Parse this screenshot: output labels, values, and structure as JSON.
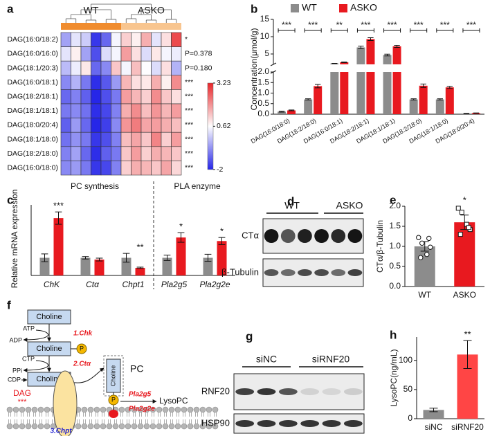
{
  "chart_data": [
    {
      "type": "heatmap",
      "panel": "a",
      "groups": [
        {
          "name": "WT",
          "color": "#f08c2e"
        },
        {
          "name": "ASKO",
          "color": "#f8c58f"
        }
      ],
      "rows": [
        "DAG(16:0/18:2)",
        "DAG(16:0/16:0)",
        "DAG(18:1/20:3)",
        "DAG(16:0/18:1)",
        "DAG(18:2/18:1)",
        "DAG(18:1/18:1)",
        "DAG(18:0/20:4)",
        "DAG(18:1/18:0)",
        "DAG(18:2/18:0)",
        "DAG(16:0/18:0)"
      ],
      "row_annotations": [
        "*",
        "P=0.378",
        "P=0.180",
        "***",
        "***",
        "***",
        "***",
        "***",
        "***",
        "***"
      ],
      "values": [
        [
          -0.5,
          0.3,
          0.0,
          -1.8,
          -1.2,
          0.5,
          1.2,
          0.8,
          1.6,
          0.3,
          1.0,
          2.8
        ],
        [
          0.3,
          0.8,
          -0.5,
          -1.5,
          0.2,
          0.5,
          1.8,
          1.0,
          0.2,
          0.9,
          0.5,
          0.4
        ],
        [
          -0.2,
          0.4,
          0.9,
          -1.2,
          -0.8,
          1.3,
          0.5,
          1.4,
          0.6,
          0.2,
          1.0,
          -0.3
        ],
        [
          -0.8,
          -0.3,
          -1.0,
          -1.9,
          -1.4,
          -0.6,
          1.5,
          1.0,
          0.9,
          1.6,
          0.8,
          2.0
        ],
        [
          -1.2,
          -0.9,
          -1.3,
          -2.0,
          -1.5,
          -1.0,
          1.8,
          1.5,
          1.2,
          2.0,
          1.3,
          1.0
        ],
        [
          -1.0,
          -0.8,
          -1.1,
          -1.9,
          -1.6,
          -0.9,
          1.6,
          2.0,
          1.4,
          1.9,
          1.5,
          1.8
        ],
        [
          -1.3,
          -0.6,
          -1.2,
          -2.0,
          -1.7,
          -0.8,
          1.9,
          2.2,
          1.7,
          1.8,
          1.6,
          1.4
        ],
        [
          -1.1,
          -0.7,
          -1.0,
          -1.8,
          -1.5,
          -0.9,
          1.4,
          1.7,
          1.3,
          2.1,
          1.2,
          1.8
        ],
        [
          -0.9,
          -0.5,
          -1.2,
          -1.9,
          -1.3,
          -1.0,
          1.3,
          1.8,
          1.2,
          1.6,
          1.5,
          1.3
        ],
        [
          -0.8,
          -0.6,
          -1.0,
          -1.8,
          -1.6,
          -0.9,
          1.2,
          1.6,
          1.5,
          1.3,
          1.7,
          1.1
        ]
      ],
      "zlim": [
        -2,
        3.23
      ],
      "zticks": [
        -2,
        0.62,
        3.23
      ],
      "colors": [
        "#2626e8",
        "#ffffff",
        "#e8262a"
      ]
    },
    {
      "type": "bar",
      "panel": "b",
      "y_label": "Concentration(μmol/g)",
      "categories": [
        "DAG(16:0/18:0)",
        "DAG(18:2/18:0)",
        "DAG(16:0/18:1)",
        "DAG(18:2/18:1)",
        "DAG(18:1/18:1)",
        "DAG(18:2/18:0)",
        "DAG(18:1/18:0)",
        "DAG(18:0/20:4)"
      ],
      "series": [
        {
          "name": "WT",
          "color": "#8c8c8c",
          "values": [
            0.12,
            0.7,
            2.25,
            6.9,
            4.7,
            0.7,
            0.7,
            0.03
          ],
          "errors": [
            0.02,
            0.03,
            0.05,
            0.35,
            0.25,
            0.03,
            0.03,
            0.01
          ]
        },
        {
          "name": "ASKO",
          "color": "#e8191f",
          "values": [
            0.18,
            1.33,
            2.6,
            9.3,
            7.2,
            1.35,
            1.27,
            0.05
          ],
          "errors": [
            0.02,
            0.08,
            0.08,
            0.4,
            0.3,
            0.08,
            0.05,
            0.01
          ]
        }
      ],
      "significance": [
        "***",
        "***",
        "**",
        "***",
        "***",
        "***",
        "***",
        "***"
      ],
      "y_segments": [
        {
          "ylim": [
            0,
            2
          ],
          "yticks": [
            {
              "value": 0,
              "label": "0.0"
            },
            0.5,
            {
              "value": 1,
              "label": "1.0"
            },
            1.5,
            {
              "value": 2,
              "label": "2.0"
            }
          ]
        },
        {
          "ylim": [
            2,
            15
          ],
          "yticks": [
            5,
            10,
            15
          ]
        }
      ],
      "legend": "top"
    },
    {
      "type": "bar",
      "panel": "c",
      "y_label": "Relative mRNA expression",
      "categories": [
        "ChK",
        "Ctα",
        "Chpt1",
        "Pla2g5",
        "Pla2g2e"
      ],
      "series": [
        {
          "color": "#8c8c8c",
          "values": [
            1,
            1,
            1,
            1,
            1
          ],
          "errors": [
            0.22,
            0.07,
            0.25,
            0.15,
            0.2
          ]
        },
        {
          "color": "#e8191f",
          "values": [
            3.25,
            0.9,
            0.43,
            2.15,
            1.95
          ],
          "errors": [
            0.35,
            0.08,
            0.04,
            0.27,
            0.2
          ]
        }
      ],
      "significance": [
        "***",
        null,
        "**",
        "*",
        "*"
      ],
      "ylim": [
        0,
        4
      ],
      "annotations": [
        {
          "text": "PC synthesis"
        },
        {
          "text": "PLA enzyme"
        }
      ]
    },
    {
      "type": "bar",
      "panel": "e",
      "y_label": "CTα/β-Tubulin",
      "categories": [
        "WT",
        "ASKO"
      ],
      "values": [
        1.0,
        1.6
      ],
      "errors": [
        0.12,
        0.18
      ],
      "colors": [
        "#8c8c8c",
        "#e8191f"
      ],
      "points": [
        [
          1.22,
          1.08,
          0.8,
          0.98,
          0.72,
          1.2
        ],
        [
          1.95,
          1.85,
          1.55,
          1.42,
          1.3,
          1.47
        ]
      ],
      "markers": [
        "circle",
        "square"
      ],
      "significance": [
        null,
        "*"
      ],
      "ylim": [
        0,
        2
      ],
      "yticks": [
        {
          "value": 0,
          "label": "0.0"
        },
        0.5,
        {
          "value": 1,
          "label": "1.0"
        },
        1.5,
        {
          "value": 2,
          "label": "2.0"
        }
      ]
    },
    {
      "type": "bar",
      "panel": "h",
      "y_label": "LysoPC(ng/mL)",
      "categories": [
        "siNC",
        "siRNF20"
      ],
      "values": [
        15,
        110
      ],
      "errors": [
        3,
        24
      ],
      "colors": [
        "#8c8c8c",
        "#ff4545"
      ],
      "significance": [
        null,
        "**"
      ],
      "ylim": [
        0,
        140
      ],
      "yticks": [
        0,
        50,
        100
      ]
    }
  ],
  "blots": [
    {
      "panel": "d",
      "groups": [
        "WT",
        "ASKO"
      ],
      "rows": [
        "CTα",
        "β-Tubulin"
      ]
    },
    {
      "panel": "g",
      "groups": [
        "siNC",
        "siRNF20"
      ],
      "rows": [
        "RNF20",
        "HSP90"
      ]
    }
  ],
  "diagram": {
    "panel": "f",
    "choline_boxes": [
      "Choline",
      "Choline",
      "Choline"
    ],
    "atp": "ATP",
    "adp": "ADP",
    "enzyme1": "1.Chk",
    "phosphates": [
      "P",
      "P"
    ],
    "ctp": "CTP",
    "ppi": "PPi",
    "enzyme2": "2.Ctα",
    "cdp": "CDP",
    "dag": "DAG",
    "dag_significance": "***",
    "pc_choline": "Choline",
    "pc": "PC",
    "pla_enzymes": [
      "Pla2g5",
      "Pla2g2e"
    ],
    "product": "LysoPC",
    "enzyme3": "3.Chpt"
  }
}
